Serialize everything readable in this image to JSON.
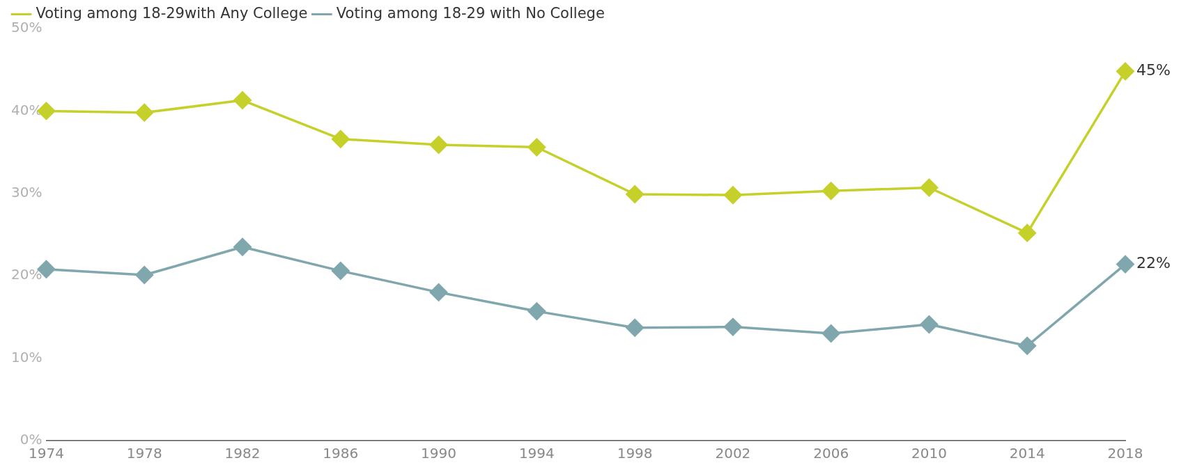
{
  "chart_data": {
    "type": "line",
    "categories": [
      "1974",
      "1978",
      "1982",
      "1986",
      "1990",
      "1994",
      "1998",
      "2002",
      "2006",
      "2010",
      "2014",
      "2018"
    ],
    "series": [
      {
        "name": "Voting among 18-29with Any College",
        "color": "#c5d12a",
        "values": [
          40.0,
          39.8,
          41.3,
          36.6,
          35.9,
          35.6,
          29.9,
          29.8,
          30.3,
          30.7,
          25.2,
          44.8
        ]
      },
      {
        "name": "Voting among 18-29 with No College",
        "color": "#7fa7ad",
        "values": [
          20.8,
          20.1,
          23.5,
          20.6,
          18.0,
          15.7,
          13.7,
          13.8,
          13.0,
          14.1,
          11.5,
          21.4
        ]
      }
    ],
    "ylim": [
      0,
      50
    ],
    "yticks": [
      {
        "value": 0,
        "label": "0%"
      },
      {
        "value": 10,
        "label": "10%"
      },
      {
        "value": 20,
        "label": "20%"
      },
      {
        "value": 30,
        "label": "30%"
      },
      {
        "value": 40,
        "label": "40%"
      },
      {
        "value": 50,
        "label": "50%"
      }
    ],
    "annotations": [
      {
        "text": "45%",
        "x": "2018",
        "y": 44.8
      },
      {
        "text": "22%",
        "x": "2018",
        "y": 21.4
      }
    ],
    "grid": false,
    "legend": "top left",
    "marker": "diamond",
    "line_style": "solid"
  }
}
